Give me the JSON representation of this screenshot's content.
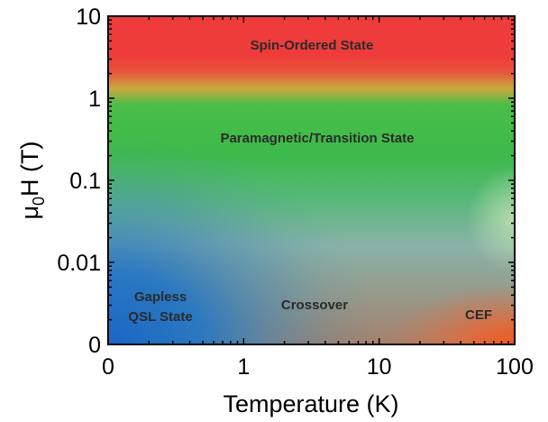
{
  "chart_data": {
    "type": "heatmap",
    "title": "",
    "xlabel": "Temperature (K)",
    "ylabel_main": "μ",
    "ylabel_sub": "0",
    "ylabel_rest": "H (T)",
    "xscale": "log",
    "yscale": "log",
    "xlim": [
      0,
      100
    ],
    "ylim": [
      0,
      10
    ],
    "x_ticks": [
      "0",
      "1",
      "10",
      "100"
    ],
    "y_ticks": [
      "0",
      "0.01",
      "0.1",
      "1",
      "10"
    ],
    "grid": false,
    "legend": "none",
    "regions": [
      {
        "name": "Spin-Ordered State",
        "color": "#ee3b3b"
      },
      {
        "name": "Paramagnetic/Transition State",
        "color": "#3cba4a"
      },
      {
        "name": "Gapless",
        "name2": "QSL State",
        "color": "#1f6fc4"
      },
      {
        "name": "Crossover",
        "color": "#b07060"
      },
      {
        "name": "CEF",
        "color": "#f05a22"
      }
    ]
  }
}
